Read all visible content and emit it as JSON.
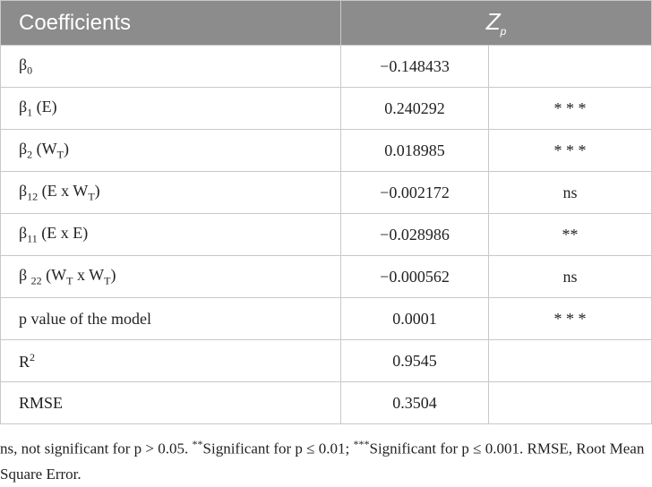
{
  "table": {
    "headers": {
      "coefficients": "Coefficients",
      "zp": {
        "main": "Z",
        "sub": "p"
      }
    },
    "rows": [
      [
        [
          {
            "t": "β"
          },
          {
            "sub": "0"
          }
        ],
        "−0.148433",
        null
      ],
      [
        [
          {
            "t": "β"
          },
          {
            "sub": "1"
          },
          {
            "t": " (E)"
          }
        ],
        "0.240292",
        "* * *"
      ],
      [
        [
          {
            "t": "β"
          },
          {
            "sub": "2"
          },
          {
            "t": " (W"
          },
          {
            "sub": "T"
          },
          {
            "t": ")"
          }
        ],
        "0.018985",
        "* * *"
      ],
      [
        [
          {
            "t": "β"
          },
          {
            "sub": "12"
          },
          {
            "t": " (E x W"
          },
          {
            "sub": "T"
          },
          {
            "t": ")"
          }
        ],
        "−0.002172",
        "ns"
      ],
      [
        [
          {
            "t": "β"
          },
          {
            "sub": "11"
          },
          {
            "t": " (E x E)"
          }
        ],
        "−0.028986",
        "**"
      ],
      [
        [
          {
            "t": "β "
          },
          {
            "sub": "22"
          },
          {
            "t": " (W"
          },
          {
            "sub": "T"
          },
          {
            "t": " x W"
          },
          {
            "sub": "T"
          },
          {
            "t": ")"
          }
        ],
        "−0.000562",
        "ns"
      ],
      [
        [
          {
            "t": "p value of the model"
          }
        ],
        "0.0001",
        "* * *"
      ],
      [
        [
          {
            "t": "R"
          },
          {
            "sup": "2"
          }
        ],
        "0.9545",
        null
      ],
      [
        [
          {
            "t": "RMSE"
          }
        ],
        "0.3504",
        null
      ]
    ]
  },
  "footnote": [
    {
      "t": "ns, not significant for p > 0.05. "
    },
    {
      "sup": "**"
    },
    {
      "t": "Significant for p ≤ 0.01; "
    },
    {
      "sup": "***"
    },
    {
      "t": "Significant for p ≤ 0.001. RMSE, Root Mean Square Error."
    }
  ]
}
